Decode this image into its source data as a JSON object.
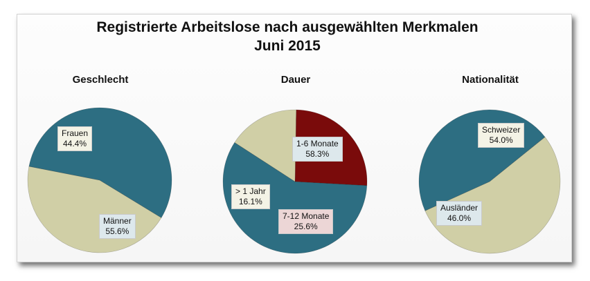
{
  "title_line1": "Registrierte Arbeitslose nach ausgewählten Merkmalen",
  "title_line2": "Juni 2015",
  "chart_data": [
    {
      "type": "pie",
      "title": "Geschlecht",
      "slices": [
        {
          "label": "Frauen",
          "value": 44.4,
          "display": "44.4%",
          "color": "#d0cfa6"
        },
        {
          "label": "Männer",
          "value": 55.6,
          "display": "55.6%",
          "color": "#2d6e82"
        }
      ]
    },
    {
      "type": "pie",
      "title": "Dauer",
      "slices": [
        {
          "label": "1-6 Monate",
          "value": 58.3,
          "display": "58.3%",
          "color": "#2d6e82"
        },
        {
          "label": "7-12 Monate",
          "value": 25.6,
          "display": "25.6%",
          "color": "#7a0b0b"
        },
        {
          "label": "> 1 Jahr",
          "value": 16.1,
          "display": "16.1%",
          "color": "#d0cfa6"
        }
      ]
    },
    {
      "type": "pie",
      "title": "Nationalität",
      "slices": [
        {
          "label": "Schweizer",
          "value": 54.0,
          "display": "54.0%",
          "color": "#d0cfa6"
        },
        {
          "label": "Ausländer",
          "value": 46.0,
          "display": "46.0%",
          "color": "#2d6e82"
        }
      ]
    }
  ]
}
